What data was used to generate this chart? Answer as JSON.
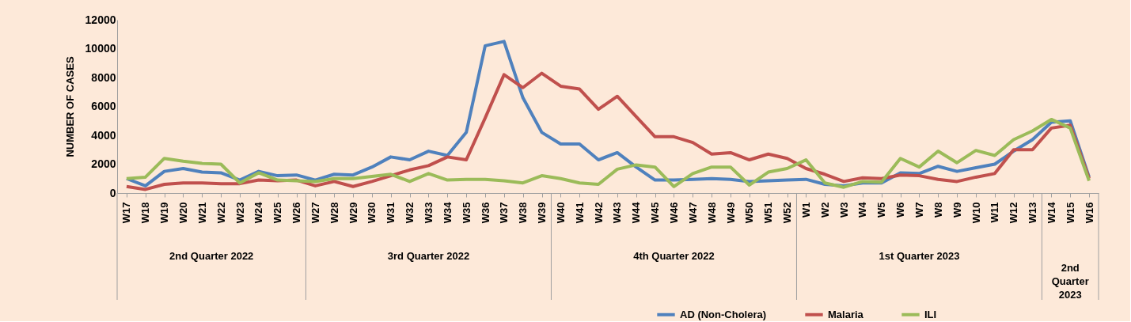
{
  "chart_data": {
    "type": "line",
    "ylabel": "NUMBER OF CASES",
    "categories": [
      "W17",
      "W18",
      "W19",
      "W20",
      "W21",
      "W22",
      "W23",
      "W24",
      "W25",
      "W26",
      "W27",
      "W28",
      "W29",
      "W30",
      "W31",
      "W32",
      "W33",
      "W34",
      "W35",
      "W36",
      "W37",
      "W38",
      "W39",
      "W40",
      "W41",
      "W42",
      "W43",
      "W44",
      "W45",
      "W46",
      "W47",
      "W48",
      "W49",
      "W50",
      "W51",
      "W52",
      "W1",
      "W2",
      "W3",
      "W4",
      "W5",
      "W6",
      "W7",
      "W8",
      "W9",
      "W10",
      "W11",
      "W12",
      "W13",
      "W14",
      "W15",
      "W16"
    ],
    "series": [
      {
        "name": "AD (Non-Cholera)",
        "color": "#4f81bd",
        "values": [
          1000,
          500,
          1500,
          1700,
          1450,
          1400,
          900,
          1500,
          1200,
          1250,
          900,
          1300,
          1250,
          1800,
          2500,
          2300,
          2900,
          2600,
          4200,
          10200,
          10500,
          6600,
          4200,
          3400,
          3400,
          2300,
          2800,
          1800,
          900,
          900,
          950,
          1000,
          950,
          800,
          850,
          900,
          950,
          600,
          500,
          700,
          700,
          1400,
          1350,
          1850,
          1500,
          1750,
          2000,
          2900,
          3700,
          4900,
          5000,
          1100
        ]
      },
      {
        "name": "Malaria",
        "color": "#c0504d",
        "values": [
          450,
          250,
          600,
          700,
          700,
          650,
          650,
          900,
          850,
          900,
          500,
          800,
          450,
          800,
          1200,
          1600,
          1900,
          2500,
          2300,
          5200,
          8200,
          7300,
          8300,
          7400,
          7200,
          5800,
          6700,
          5300,
          3900,
          3900,
          3500,
          2700,
          2800,
          2300,
          2700,
          2400,
          1700,
          1300,
          800,
          1050,
          1000,
          1250,
          1200,
          950,
          800,
          1100,
          1350,
          3000,
          3000,
          4500,
          4700,
          1000
        ]
      },
      {
        "name": "ILI",
        "color": "#9bbb59",
        "values": [
          1000,
          1100,
          2400,
          2200,
          2050,
          2000,
          700,
          1400,
          900,
          850,
          800,
          1000,
          1000,
          1150,
          1300,
          800,
          1350,
          900,
          950,
          950,
          850,
          700,
          1200,
          1000,
          700,
          600,
          1650,
          1950,
          1800,
          450,
          1350,
          1800,
          1800,
          550,
          1450,
          1700,
          2300,
          700,
          400,
          800,
          750,
          2400,
          1800,
          2900,
          2100,
          2950,
          2600,
          3700,
          4300,
          5100,
          4500,
          850
        ]
      }
    ],
    "ylim": [
      0,
      12000
    ],
    "yticks": [
      0,
      2000,
      4000,
      6000,
      8000,
      10000,
      12000
    ],
    "grid": false,
    "legend": "bottom",
    "annotations": [
      "2nd Quarter 2022",
      "3rd Quarter 2022",
      "4th Quarter 2022",
      "1st Quarter 2023",
      "2nd Quarter 2023"
    ]
  }
}
